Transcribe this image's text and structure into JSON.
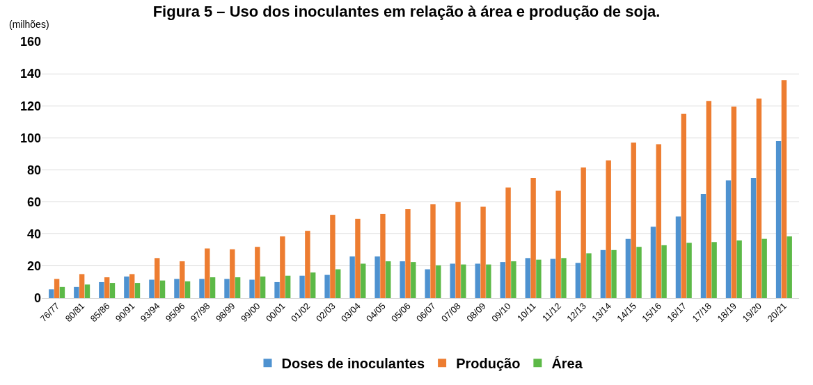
{
  "chart_data": {
    "type": "bar",
    "title": "Figura 5 – Uso dos inoculantes em relação à área e produção de soja.",
    "ylabel": "(milhões)",
    "categories": [
      "76/77",
      "80/81",
      "85/86",
      "90/91",
      "93/94",
      "95/96",
      "97/98",
      "98/99",
      "99/00",
      "00/01",
      "01/02",
      "02/03",
      "03/04",
      "04/05",
      "05/06",
      "06/07",
      "07/08",
      "08/09",
      "09/10",
      "10/11",
      "11/12",
      "12/13",
      "13/14",
      "14/15",
      "15/16",
      "16/17",
      "17/18",
      "18/19",
      "19/20",
      "20/21"
    ],
    "series": [
      {
        "name": "Doses de inoculantes",
        "color": "#4e92d0",
        "values": [
          5.5,
          7,
          10,
          13.5,
          11.5,
          12,
          12,
          12,
          11.5,
          10,
          14,
          14.5,
          26,
          26,
          23,
          18,
          21.5,
          21.5,
          22.5,
          25,
          24.5,
          22,
          30,
          37,
          44.5,
          51,
          65,
          73.5,
          75,
          98
        ]
      },
      {
        "name": "Produção",
        "color": "#ed7d31",
        "values": [
          12,
          15,
          13,
          15,
          25,
          23,
          31,
          30.5,
          32,
          38.5,
          42,
          52,
          49.5,
          52.5,
          55.5,
          58.5,
          60,
          57,
          69,
          75,
          67,
          81.5,
          86,
          97,
          96,
          115,
          123,
          119.5,
          124.5,
          136
        ]
      },
      {
        "name": "Área",
        "color": "#5cb947",
        "values": [
          7,
          8.5,
          9.5,
          9.5,
          11,
          10.5,
          13,
          13,
          13.5,
          14,
          16,
          18,
          21.5,
          23,
          22.5,
          20.5,
          21,
          21,
          23,
          24,
          25,
          28,
          30,
          32,
          33,
          34.5,
          35,
          36,
          37,
          38.5
        ]
      }
    ],
    "ylim": [
      0,
      160
    ],
    "yticks": [
      0,
      20,
      40,
      60,
      80,
      100,
      120,
      140,
      160
    ],
    "grid": "y",
    "legend": "bottom"
  }
}
